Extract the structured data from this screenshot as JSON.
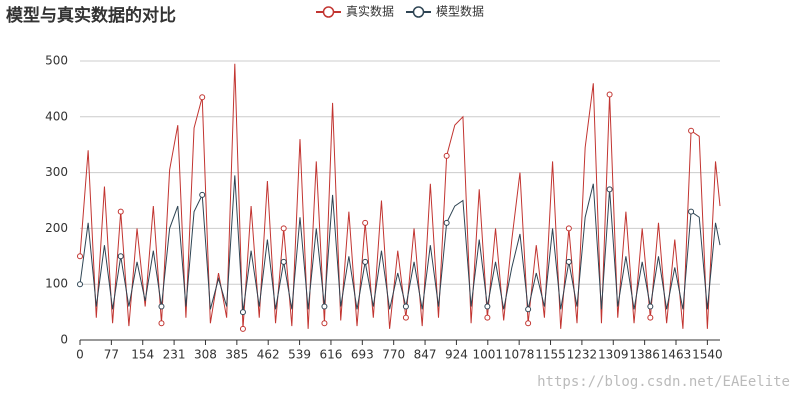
{
  "chart_data": {
    "type": "line",
    "title": "模型与真实数据的对比",
    "watermark": "https://blog.csdn.net/EAEelite",
    "x": [
      0,
      20,
      40,
      60,
      80,
      100,
      120,
      140,
      160,
      180,
      200,
      220,
      240,
      260,
      280,
      300,
      320,
      340,
      360,
      380,
      400,
      420,
      440,
      460,
      480,
      500,
      520,
      540,
      560,
      580,
      600,
      620,
      640,
      660,
      680,
      700,
      720,
      740,
      760,
      780,
      800,
      820,
      840,
      860,
      880,
      900,
      920,
      940,
      960,
      980,
      1000,
      1020,
      1040,
      1060,
      1080,
      1100,
      1120,
      1140,
      1160,
      1180,
      1200,
      1220,
      1240,
      1260,
      1280,
      1300,
      1320,
      1340,
      1360,
      1380,
      1400,
      1420,
      1440,
      1460,
      1480,
      1500,
      1520,
      1540,
      1560,
      1571
    ],
    "series": [
      {
        "name": "真实数据",
        "color": "#c23531",
        "values": [
          150,
          340,
          40,
          275,
          30,
          230,
          25,
          200,
          60,
          240,
          30,
          305,
          385,
          40,
          380,
          435,
          30,
          120,
          40,
          495,
          20,
          240,
          40,
          285,
          30,
          200,
          25,
          360,
          20,
          320,
          30,
          425,
          35,
          230,
          25,
          210,
          40,
          250,
          20,
          160,
          40,
          200,
          25,
          280,
          40,
          330,
          385,
          400,
          30,
          270,
          40,
          200,
          35,
          180,
          300,
          30,
          170,
          40,
          320,
          20,
          200,
          30,
          345,
          460,
          30,
          440,
          40,
          230,
          30,
          200,
          40,
          210,
          30,
          180,
          20,
          375,
          365,
          20,
          320,
          240
        ]
      },
      {
        "name": "模型数据",
        "color": "#2f4554",
        "values": [
          100,
          210,
          60,
          170,
          55,
          150,
          60,
          140,
          70,
          160,
          60,
          200,
          240,
          60,
          230,
          260,
          55,
          110,
          60,
          295,
          50,
          160,
          60,
          180,
          55,
          140,
          55,
          220,
          55,
          200,
          60,
          260,
          60,
          150,
          55,
          140,
          60,
          160,
          55,
          120,
          60,
          140,
          55,
          170,
          60,
          210,
          240,
          250,
          60,
          180,
          60,
          140,
          55,
          130,
          190,
          55,
          120,
          60,
          200,
          55,
          140,
          60,
          220,
          280,
          55,
          270,
          60,
          150,
          55,
          140,
          60,
          150,
          55,
          130,
          55,
          230,
          220,
          55,
          210,
          170
        ]
      }
    ],
    "xlim": [
      0,
      1571
    ],
    "xticks": [
      0,
      77,
      154,
      231,
      308,
      385,
      462,
      539,
      616,
      693,
      770,
      847,
      924,
      1001,
      1078,
      1155,
      1232,
      1309,
      1386,
      1463,
      1540
    ],
    "ylim": [
      0,
      500
    ],
    "yticks": [
      0,
      100,
      200,
      300,
      400,
      500
    ],
    "grid": true,
    "legend": "top"
  }
}
